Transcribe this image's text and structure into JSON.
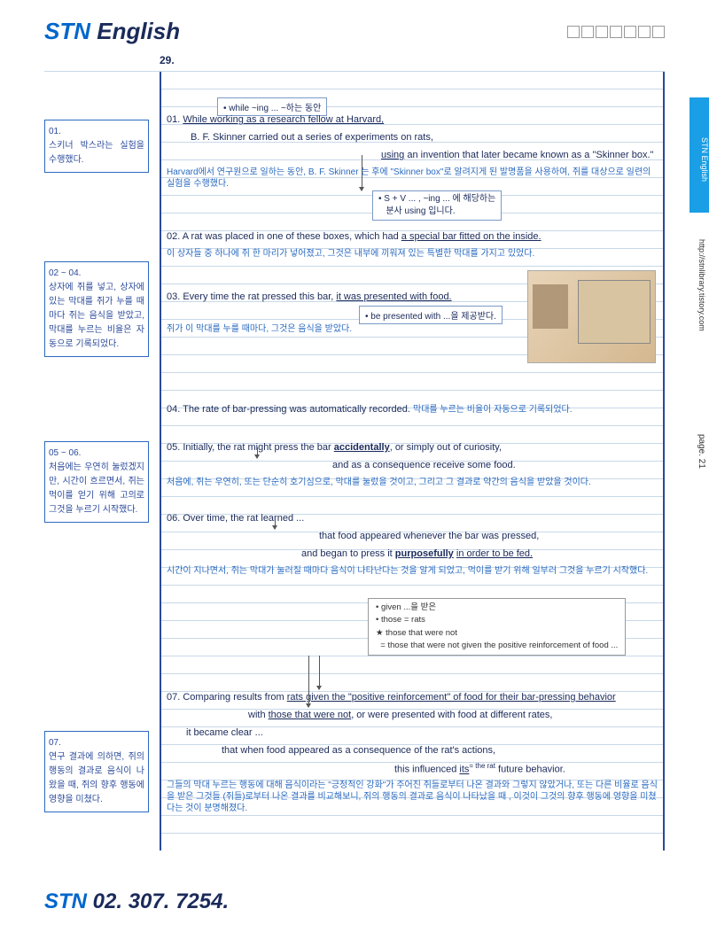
{
  "header": {
    "logo_stn": "STN",
    "logo_english": " English"
  },
  "section_number": "29.",
  "side": {
    "tab": "STN English",
    "url": "http://stnlibrary.tistory.com",
    "page": "page. 21"
  },
  "margin": {
    "box1": {
      "num": "01.",
      "text": "스키너 박스라는 실험을 수행했다."
    },
    "box2": {
      "num": "02 ~ 04.",
      "text": "상자에 쥐를 넣고, 상자에 있는 막대를 쥐가 누를 때마다 쥐는 음식을 받았고, 막대를 누르는 비율은 자동으로 기록되었다."
    },
    "box3": {
      "num": "05 ~ 06.",
      "text": "처음에는 우연히 눌렀겠지만, 시간이 흐르면서, 쥐는 먹이를 얻기 위해 고의로 그것을 누르기 시작했다."
    },
    "box4": {
      "num": "07.",
      "text": "연구 결과에 의하면, 쥐의 행동의 결과로 음식이 나왔을 때, 쥐의 향후 행동에 영향을 미쳤다."
    }
  },
  "notes": {
    "while": "• while ~ing ... ~하는 동안",
    "sv": "• S + V ... , ~ing ... 에 해당하는\n   분사 using 입니다.",
    "presented": "• be presented with ...을 제공받다.",
    "given": "• given ...을 받은\n• those = rats\n★ those that were not\n  = those that were not given the positive reinforcement of food ...",
    "rat_annotation": "= the rat"
  },
  "lines": {
    "l01a": "01. ",
    "l01a_u": "While working as a research fellow at Harvard,",
    "l01b": "B. F. Skinner carried out a series of experiments on rats,",
    "l01c_u": "using",
    "l01c": " an invention that later became known as a \"Skinner box.\"",
    "l01ko": "Harvard에서 연구원으로 일하는 동안, B. F. Skinner 는 후에 \"Skinner box\"로 알려지게 된 발명품을 사용하여, 쥐를 대상으로 일련의 실험을 수행했다.",
    "l02a": "02. A rat was placed in one of these boxes, which had ",
    "l02a_u": "a special bar fitted on the inside.",
    "l02ko": "이 상자들 중 하나에 쥐 한 마리가 넣어졌고, 그것은 내부에 끼워져 있는 특별한 막대를 가지고 있었다.",
    "l03a": "03. Every time the rat pressed this bar, ",
    "l03a_u": "it was presented with food.",
    "l03ko": "쥐가 이 막대를 누를 때마다, 그것은 음식을 받았다.",
    "l04a": "04. The rate of bar-pressing was automatically recorded. ",
    "l04ko_inline": "막대를 누르는 비율이 자동으로 기록되었다.",
    "l05a": "05. Initially, the rat might    press the bar ",
    "l05a_u": "accidentally",
    "l05a2": ", or simply out of curiosity,",
    "l05b": "and as a consequence receive some food.",
    "l05ko": "처음에, 쥐는 우연히, 또는 단순히 호기심으로, 막대를 눌렀을 것이고, 그리고 그 결과로 약간의 음식을 받았을 것이다.",
    "l06a": "06. Over time, the rat       learned ...",
    "l06b": "that food appeared whenever the bar was pressed,",
    "l06c": "and began to press it ",
    "l06c_u": "purposefully",
    "l06c2": " ",
    "l06c_u2": "in order to be fed.",
    "l06ko": "시간이 지나면서, 쥐는 막대가 눌러질 때마다 음식이 나타난다는 것을 알게 되었고, 먹이를 받기 위해 일부러 그것을 누르기 시작했다.",
    "l07a": "07. Comparing    results from ",
    "l07a_u": "rats given the \"positive reinforcement\" of food for their bar-pressing behavior",
    "l07b": "with ",
    "l07b_u": "those that were not",
    "l07b2": ", or were presented with food at different rates,",
    "l07c": "it became clear ...",
    "l07d": "that when food appeared as a consequence of the rat's actions,",
    "l07e": "this influenced ",
    "l07e_u": "its",
    "l07e2": "           future behavior.",
    "l07ko": "그들의 막대 누르는 행동에 대해 음식이라는 \"긍정적인 강화\"가 주어진 쥐들로부터 나온 결과와 그렇지 않았거나, 또는 다른 비율로 음식을 받은 그것들 (쥐들)로부터 나온 결과를 비교해보니, 쥐의 행동의 결과로 음식이 나타났을 때 , 이것이 그것의 향후 행동에 영향을 미쳤다는 것이 분명해졌다."
  },
  "footer": {
    "stn": "STN",
    "num": " 02. 307. 7254."
  }
}
